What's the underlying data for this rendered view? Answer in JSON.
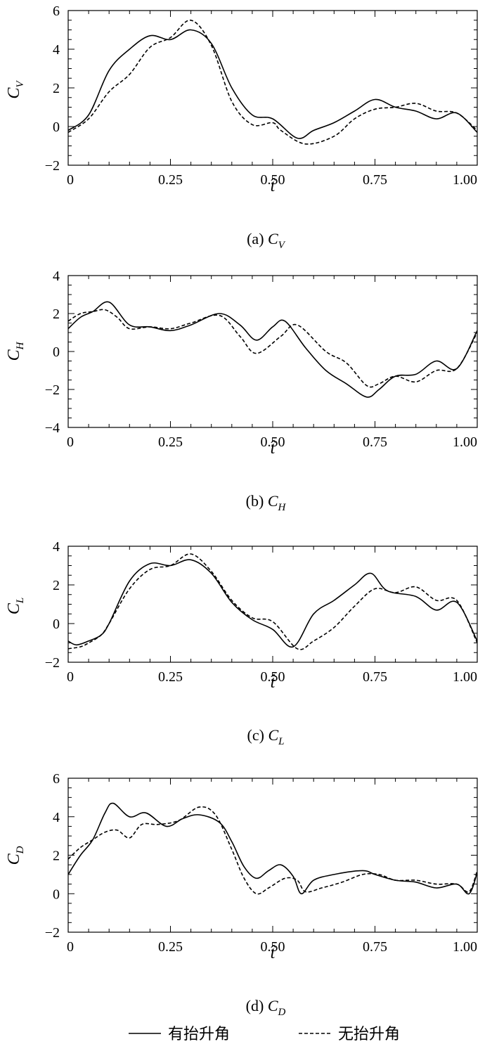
{
  "chart_data": [
    {
      "type": "line",
      "caption": "(a) C",
      "caption_sub": "V",
      "ylabel": "C",
      "ylabel_sub": "V",
      "xlabel": "t̂",
      "xlim": [
        0,
        1
      ],
      "ylim": [
        -2,
        6
      ],
      "x_ticks": [
        "0",
        "0.25",
        "0.50",
        "0.75",
        "1.00"
      ],
      "y_ticks": [
        "6",
        "4",
        "2",
        "0",
        "−2"
      ],
      "series": [
        {
          "style": "solid",
          "x": [
            0,
            0.05,
            0.1,
            0.15,
            0.2,
            0.25,
            0.3,
            0.35,
            0.4,
            0.45,
            0.5,
            0.56,
            0.6,
            0.65,
            0.7,
            0.75,
            0.8,
            0.85,
            0.9,
            0.95,
            1.0
          ],
          "y": [
            -0.2,
            0.6,
            2.9,
            4.0,
            4.7,
            4.5,
            5.0,
            4.3,
            2.0,
            0.6,
            0.4,
            -0.6,
            -0.2,
            0.2,
            0.8,
            1.4,
            1.0,
            0.8,
            0.4,
            0.7,
            -0.3
          ]
        },
        {
          "style": "dashed",
          "x": [
            0,
            0.05,
            0.1,
            0.15,
            0.2,
            0.25,
            0.3,
            0.35,
            0.4,
            0.45,
            0.5,
            0.52,
            0.58,
            0.65,
            0.7,
            0.75,
            0.8,
            0.85,
            0.9,
            0.95,
            1.0
          ],
          "y": [
            -0.3,
            0.4,
            1.8,
            2.7,
            4.1,
            4.6,
            5.5,
            4.2,
            1.3,
            0.1,
            0.2,
            -0.2,
            -0.9,
            -0.5,
            0.4,
            0.9,
            1.0,
            1.2,
            0.8,
            0.7,
            -0.2
          ]
        }
      ]
    },
    {
      "type": "line",
      "caption": "(b) C",
      "caption_sub": "H",
      "ylabel": "C",
      "ylabel_sub": "H",
      "xlabel": "t̂",
      "xlim": [
        0,
        1
      ],
      "ylim": [
        -4,
        4
      ],
      "x_ticks": [
        "0",
        "0.25",
        "0.50",
        "0.75",
        "1.00"
      ],
      "y_ticks": [
        "4",
        "2",
        "0",
        "−2",
        "−4"
      ],
      "series": [
        {
          "style": "solid",
          "x": [
            0,
            0.03,
            0.06,
            0.1,
            0.15,
            0.2,
            0.25,
            0.3,
            0.37,
            0.42,
            0.46,
            0.5,
            0.53,
            0.58,
            0.63,
            0.68,
            0.73,
            0.76,
            0.8,
            0.85,
            0.9,
            0.95,
            1.0
          ],
          "y": [
            1.2,
            1.8,
            2.1,
            2.6,
            1.4,
            1.3,
            1.1,
            1.4,
            2.0,
            1.4,
            0.6,
            1.3,
            1.6,
            0.2,
            -1.0,
            -1.7,
            -2.4,
            -2.0,
            -1.3,
            -1.2,
            -0.5,
            -0.9,
            1.1
          ]
        },
        {
          "style": "dashed",
          "x": [
            0,
            0.03,
            0.06,
            0.09,
            0.12,
            0.15,
            0.2,
            0.25,
            0.3,
            0.37,
            0.42,
            0.46,
            0.52,
            0.56,
            0.63,
            0.68,
            0.73,
            0.76,
            0.8,
            0.85,
            0.9,
            0.95,
            1.0
          ],
          "y": [
            1.6,
            2.0,
            2.1,
            2.2,
            1.8,
            1.2,
            1.3,
            1.2,
            1.5,
            1.9,
            0.8,
            -0.1,
            0.8,
            1.4,
            0.0,
            -0.6,
            -1.8,
            -1.7,
            -1.3,
            -1.6,
            -1.0,
            -0.9,
            1.0
          ]
        }
      ]
    },
    {
      "type": "line",
      "caption": "(c) C",
      "caption_sub": "L",
      "ylabel": "C",
      "ylabel_sub": "L",
      "xlabel": "t̂",
      "xlim": [
        0,
        1
      ],
      "ylim": [
        -2,
        4
      ],
      "x_ticks": [
        "0",
        "0.25",
        "0.50",
        "0.75",
        "1.00"
      ],
      "y_ticks": [
        "4",
        "2",
        "0",
        "−2"
      ],
      "series": [
        {
          "style": "solid",
          "x": [
            0,
            0.02,
            0.05,
            0.08,
            0.1,
            0.15,
            0.2,
            0.25,
            0.3,
            0.35,
            0.4,
            0.45,
            0.5,
            0.55,
            0.6,
            0.65,
            0.7,
            0.74,
            0.78,
            0.85,
            0.9,
            0.95,
            1.0
          ],
          "y": [
            -0.9,
            -1.1,
            -0.9,
            -0.6,
            0.0,
            2.2,
            3.1,
            3.0,
            3.3,
            2.6,
            1.1,
            0.2,
            -0.3,
            -1.2,
            0.5,
            1.2,
            2.0,
            2.6,
            1.7,
            1.4,
            0.7,
            1.1,
            -0.9
          ]
        },
        {
          "style": "dashed",
          "x": [
            0,
            0.03,
            0.05,
            0.08,
            0.1,
            0.15,
            0.2,
            0.25,
            0.3,
            0.35,
            0.4,
            0.45,
            0.5,
            0.56,
            0.6,
            0.65,
            0.7,
            0.75,
            0.8,
            0.85,
            0.9,
            0.95,
            1.0
          ],
          "y": [
            -1.3,
            -1.2,
            -1.0,
            -0.6,
            0.0,
            1.8,
            2.8,
            3.0,
            3.6,
            2.7,
            1.2,
            0.3,
            0.1,
            -1.3,
            -0.9,
            -0.2,
            0.9,
            1.8,
            1.6,
            1.9,
            1.2,
            1.2,
            -1.0
          ]
        }
      ]
    },
    {
      "type": "line",
      "caption": "(d) C",
      "caption_sub": "D",
      "ylabel": "C",
      "ylabel_sub": "D",
      "xlabel": "t̂",
      "xlim": [
        0,
        1
      ],
      "ylim": [
        -2,
        6
      ],
      "x_ticks": [
        "0",
        "0.25",
        "0.50",
        "0.75",
        "1.00"
      ],
      "y_ticks": [
        "6",
        "4",
        "2",
        "0",
        "−2"
      ],
      "series": [
        {
          "style": "solid",
          "x": [
            0,
            0.03,
            0.06,
            0.09,
            0.11,
            0.15,
            0.19,
            0.24,
            0.28,
            0.32,
            0.37,
            0.4,
            0.43,
            0.46,
            0.49,
            0.52,
            0.55,
            0.57,
            0.6,
            0.65,
            0.72,
            0.75,
            0.8,
            0.85,
            0.9,
            0.95,
            0.98,
            1.0
          ],
          "y": [
            1.0,
            2.0,
            2.8,
            4.2,
            4.7,
            4.0,
            4.2,
            3.5,
            3.9,
            4.1,
            3.7,
            2.7,
            1.4,
            0.8,
            1.2,
            1.5,
            0.9,
            0.0,
            0.7,
            1.0,
            1.2,
            1.0,
            0.7,
            0.6,
            0.3,
            0.5,
            0.0,
            1.1
          ]
        },
        {
          "style": "dashed",
          "x": [
            0,
            0.03,
            0.06,
            0.09,
            0.12,
            0.15,
            0.18,
            0.22,
            0.27,
            0.32,
            0.36,
            0.4,
            0.43,
            0.46,
            0.49,
            0.53,
            0.56,
            0.58,
            0.62,
            0.67,
            0.72,
            0.76,
            0.8,
            0.85,
            0.9,
            0.95,
            0.98,
            1.0
          ],
          "y": [
            1.8,
            2.4,
            2.8,
            3.2,
            3.3,
            2.9,
            3.6,
            3.6,
            3.8,
            4.5,
            4.1,
            2.3,
            0.8,
            0.0,
            0.3,
            0.8,
            0.7,
            0.1,
            0.3,
            0.6,
            1.0,
            1.0,
            0.7,
            0.7,
            0.5,
            0.5,
            0.1,
            1.2
          ]
        }
      ]
    }
  ],
  "legend": {
    "items": [
      {
        "label": "有抬升角",
        "style": "solid"
      },
      {
        "label": "无抬升角",
        "style": "dashed"
      }
    ]
  }
}
